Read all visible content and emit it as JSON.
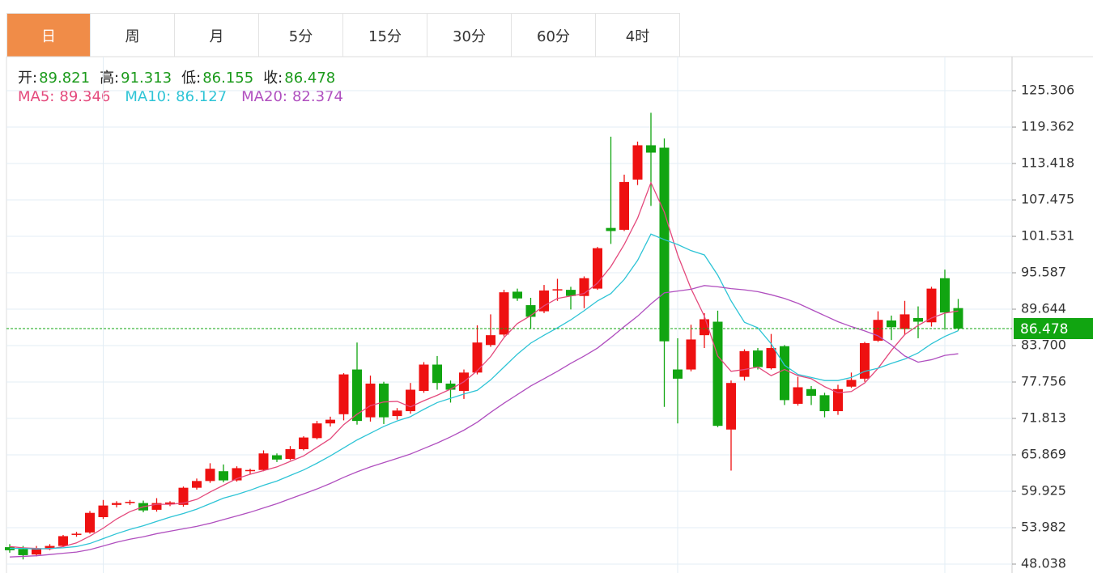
{
  "tabs": [
    "日",
    "周",
    "月",
    "5分",
    "15分",
    "30分",
    "60分",
    "4时"
  ],
  "selected_tab": 0,
  "chart_data": {
    "type": "candlestick",
    "header_labels": [
      "开:",
      "高:",
      "低:",
      "收:"
    ],
    "up_color": "#ee1111",
    "down_color": "#11a511",
    "ylim": [
      46.585,
      130.86
    ],
    "yticks": [
      48.038,
      53.982,
      59.925,
      65.869,
      71.813,
      77.756,
      83.7,
      89.644,
      95.587,
      101.531,
      107.475,
      113.418,
      119.362,
      125.306
    ],
    "ytick_labels": [
      "48.038",
      "53.982",
      "59.925",
      "65.869",
      "71.813",
      "77.756",
      {
        "value": 83.7,
        "label": "83.700"
      },
      "89.644",
      "95.587",
      "101.531",
      "107.475",
      "113.418",
      "119.362",
      "125.306"
    ],
    "grid": true,
    "open": [
      50.8,
      50.5,
      49.6,
      50.6,
      51.0,
      52.8,
      53.2,
      55.7,
      57.7,
      58.0,
      58.0,
      56.9,
      57.8,
      57.7,
      60.5,
      61.6,
      63.2,
      61.7,
      63.2,
      63.4,
      65.8,
      65.2,
      66.8,
      68.6,
      71.0,
      72.5,
      79.8,
      72.0,
      77.5,
      72.2,
      73.0,
      76.3,
      80.6,
      77.5,
      76.3,
      79.3,
      83.8,
      85.5,
      92.5,
      90.3,
      89.3,
      92.7,
      92.8,
      91.8,
      93.0,
      102.9,
      102.6,
      110.8,
      116.4,
      116.0,
      79.8,
      79.8,
      85.4,
      87.6,
      70.0,
      78.6,
      82.9,
      80.0,
      83.6,
      74.2,
      76.6,
      75.6,
      73.0,
      77.0,
      78.3,
      84.5,
      87.8,
      86.4,
      88.2,
      87.5,
      94.7,
      89.821
    ],
    "high": [
      51.3,
      51.0,
      51.0,
      51.3,
      52.8,
      53.3,
      56.7,
      58.5,
      58.3,
      58.5,
      58.4,
      58.8,
      58.3,
      60.7,
      62.0,
      64.5,
      64.3,
      64.0,
      63.6,
      66.6,
      66.1,
      67.3,
      68.9,
      71.4,
      72.1,
      79.2,
      84.2,
      78.8,
      77.8,
      73.5,
      77.6,
      81.0,
      82.0,
      78.0,
      79.8,
      87.0,
      88.8,
      92.8,
      93.0,
      91.5,
      93.6,
      94.6,
      93.3,
      95.0,
      99.8,
      117.8,
      111.6,
      117.0,
      121.7,
      117.5,
      84.9,
      87.1,
      89.0,
      89.4,
      78.0,
      83.1,
      83.3,
      85.6,
      83.8,
      78.6,
      77.1,
      76.0,
      77.3,
      79.3,
      84.3,
      89.3,
      88.6,
      91.0,
      90.1,
      93.3,
      96.1,
      91.313
    ],
    "low": [
      49.9,
      48.8,
      49.3,
      50.3,
      50.8,
      52.5,
      53.0,
      55.4,
      57.3,
      57.7,
      56.5,
      56.6,
      57.5,
      57.4,
      60.2,
      61.3,
      61.4,
      61.5,
      62.7,
      63.2,
      64.7,
      65.0,
      66.6,
      68.4,
      70.5,
      71.5,
      70.8,
      71.3,
      70.9,
      71.6,
      72.6,
      76.0,
      76.5,
      74.4,
      75.0,
      79.0,
      83.5,
      85.2,
      91.0,
      86.4,
      89.0,
      91.0,
      89.6,
      89.8,
      92.8,
      100.3,
      102.4,
      109.9,
      106.5,
      73.7,
      71.0,
      79.5,
      83.3,
      70.4,
      63.3,
      78.0,
      79.8,
      79.8,
      74.0,
      73.9,
      74.0,
      72.0,
      72.4,
      76.8,
      77.8,
      84.3,
      84.6,
      85.4,
      84.9,
      86.8,
      86.3,
      86.155
    ],
    "close": [
      50.3,
      49.5,
      50.6,
      51.0,
      52.6,
      53.0,
      56.4,
      57.6,
      58.0,
      58.2,
      56.8,
      58.0,
      58.1,
      60.5,
      61.6,
      63.6,
      61.7,
      63.7,
      63.4,
      66.1,
      65.1,
      66.8,
      68.7,
      71.0,
      71.6,
      79.0,
      71.4,
      77.5,
      72.0,
      73.1,
      76.5,
      80.6,
      77.6,
      76.5,
      79.3,
      84.2,
      85.4,
      92.4,
      91.4,
      88.4,
      92.7,
      92.9,
      91.8,
      94.7,
      99.6,
      102.4,
      110.4,
      116.4,
      115.2,
      84.4,
      78.3,
      84.7,
      88.0,
      70.6,
      77.6,
      82.8,
      80.2,
      83.3,
      74.8,
      76.9,
      75.5,
      73.0,
      76.6,
      78.1,
      84.1,
      87.9,
      86.7,
      88.8,
      87.6,
      93.0,
      89.1,
      86.478
    ],
    "series": [
      {
        "name": "MA5:",
        "color": "#e4497c",
        "values": [
          50.9,
          50.7,
          50.6,
          50.5,
          50.9,
          51.5,
          52.6,
          53.9,
          55.4,
          56.6,
          57.4,
          57.8,
          57.8,
          58.0,
          58.6,
          59.8,
          60.9,
          62.0,
          62.7,
          63.3,
          63.9,
          64.8,
          65.7,
          67.1,
          68.5,
          70.8,
          72.5,
          73.9,
          74.5,
          74.6,
          73.7,
          74.7,
          75.6,
          76.6,
          77.8,
          79.6,
          81.9,
          85.0,
          87.3,
          88.6,
          90.2,
          91.4,
          91.8,
          92.2,
          93.9,
          96.6,
          100.2,
          104.5,
          110.3,
          105.5,
          98.5,
          93.0,
          88.5,
          82.0,
          79.5,
          79.8,
          80.2,
          78.8,
          79.8,
          78.8,
          78.3,
          77.0,
          76.0,
          76.2,
          77.6,
          80.0,
          82.9,
          85.5,
          87.0,
          88.2,
          89.0,
          89.346
        ]
      },
      {
        "name": "MA10:",
        "color": "#2ec4d6",
        "values": [
          50.6,
          50.6,
          50.5,
          50.6,
          50.7,
          50.9,
          51.4,
          52.2,
          53.0,
          53.7,
          54.3,
          55.0,
          55.7,
          56.3,
          57.0,
          57.9,
          58.8,
          59.4,
          60.1,
          60.9,
          61.6,
          62.5,
          63.4,
          64.5,
          65.7,
          67.0,
          68.3,
          69.4,
          70.5,
          71.4,
          72.1,
          73.3,
          74.4,
          75.1,
          75.8,
          76.4,
          78.1,
          80.2,
          82.3,
          84.1,
          85.4,
          86.6,
          87.9,
          89.4,
          91.0,
          92.2,
          94.5,
          97.6,
          101.9,
          101.0,
          100.2,
          99.2,
          98.5,
          95.2,
          91.0,
          87.5,
          86.6,
          84.0,
          80.5,
          79.0,
          78.5,
          78.0,
          78.0,
          78.5,
          79.5,
          80.0,
          80.8,
          81.5,
          82.5,
          84.0,
          85.2,
          86.127
        ]
      },
      {
        "name": "MA20:",
        "color": "#b04fbf",
        "values": [
          49.2,
          49.3,
          49.4,
          49.6,
          49.8,
          50.0,
          50.4,
          51.0,
          51.6,
          52.1,
          52.5,
          53.0,
          53.4,
          53.8,
          54.2,
          54.7,
          55.3,
          55.9,
          56.5,
          57.2,
          57.9,
          58.7,
          59.5,
          60.3,
          61.2,
          62.2,
          63.1,
          63.9,
          64.6,
          65.3,
          66.0,
          66.9,
          67.8,
          68.8,
          69.9,
          71.2,
          72.8,
          74.3,
          75.7,
          77.1,
          78.3,
          79.5,
          80.8,
          82.0,
          83.3,
          85.0,
          86.8,
          88.5,
          90.5,
          92.3,
          92.6,
          92.9,
          93.5,
          93.3,
          93.0,
          92.8,
          92.5,
          92.0,
          91.4,
          90.6,
          89.6,
          88.6,
          87.6,
          86.8,
          86.1,
          85.3,
          83.8,
          82.0,
          81.0,
          81.4,
          82.1,
          82.374
        ]
      }
    ]
  }
}
